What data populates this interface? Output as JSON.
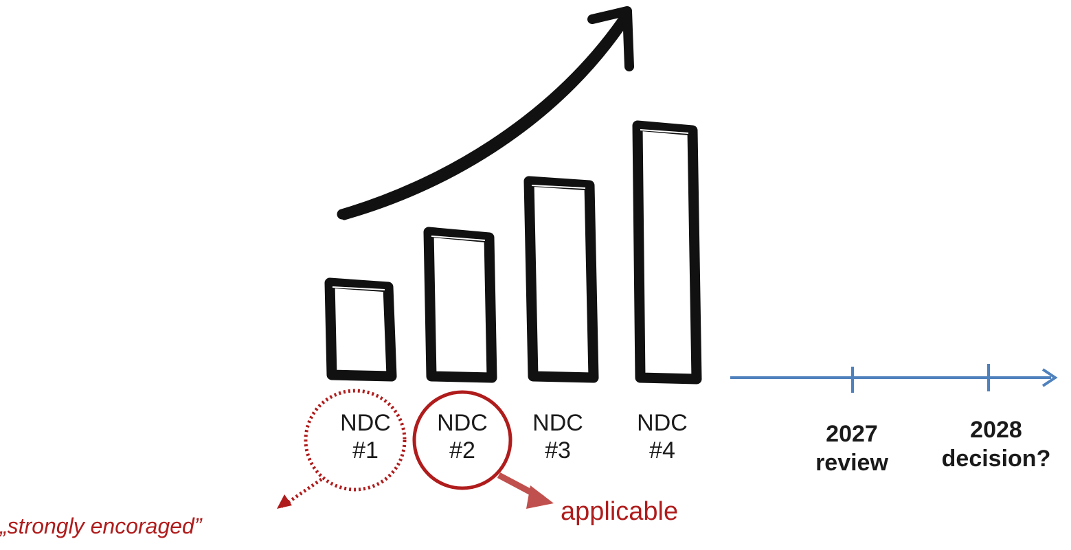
{
  "ndcs": [
    {
      "name": "NDC",
      "number": "#1",
      "level": 1
    },
    {
      "name": "NDC",
      "number": "#2",
      "level": 2
    },
    {
      "name": "NDC",
      "number": "#3",
      "level": 3
    },
    {
      "name": "NDC",
      "number": "#4",
      "level": 4
    }
  ],
  "timeline": {
    "events": [
      {
        "year": "2027",
        "label": "review"
      },
      {
        "year": "2028",
        "label": "decision?"
      }
    ]
  },
  "annotations": {
    "ndc1_note": "„strongly encoraged”",
    "ndc2_note": "applicable"
  },
  "colors": {
    "bar_outline": "#111111",
    "annotation_red": "#b01c1c",
    "annotation_arrow": "#c0504d",
    "timeline_blue": "#4f81bd"
  }
}
